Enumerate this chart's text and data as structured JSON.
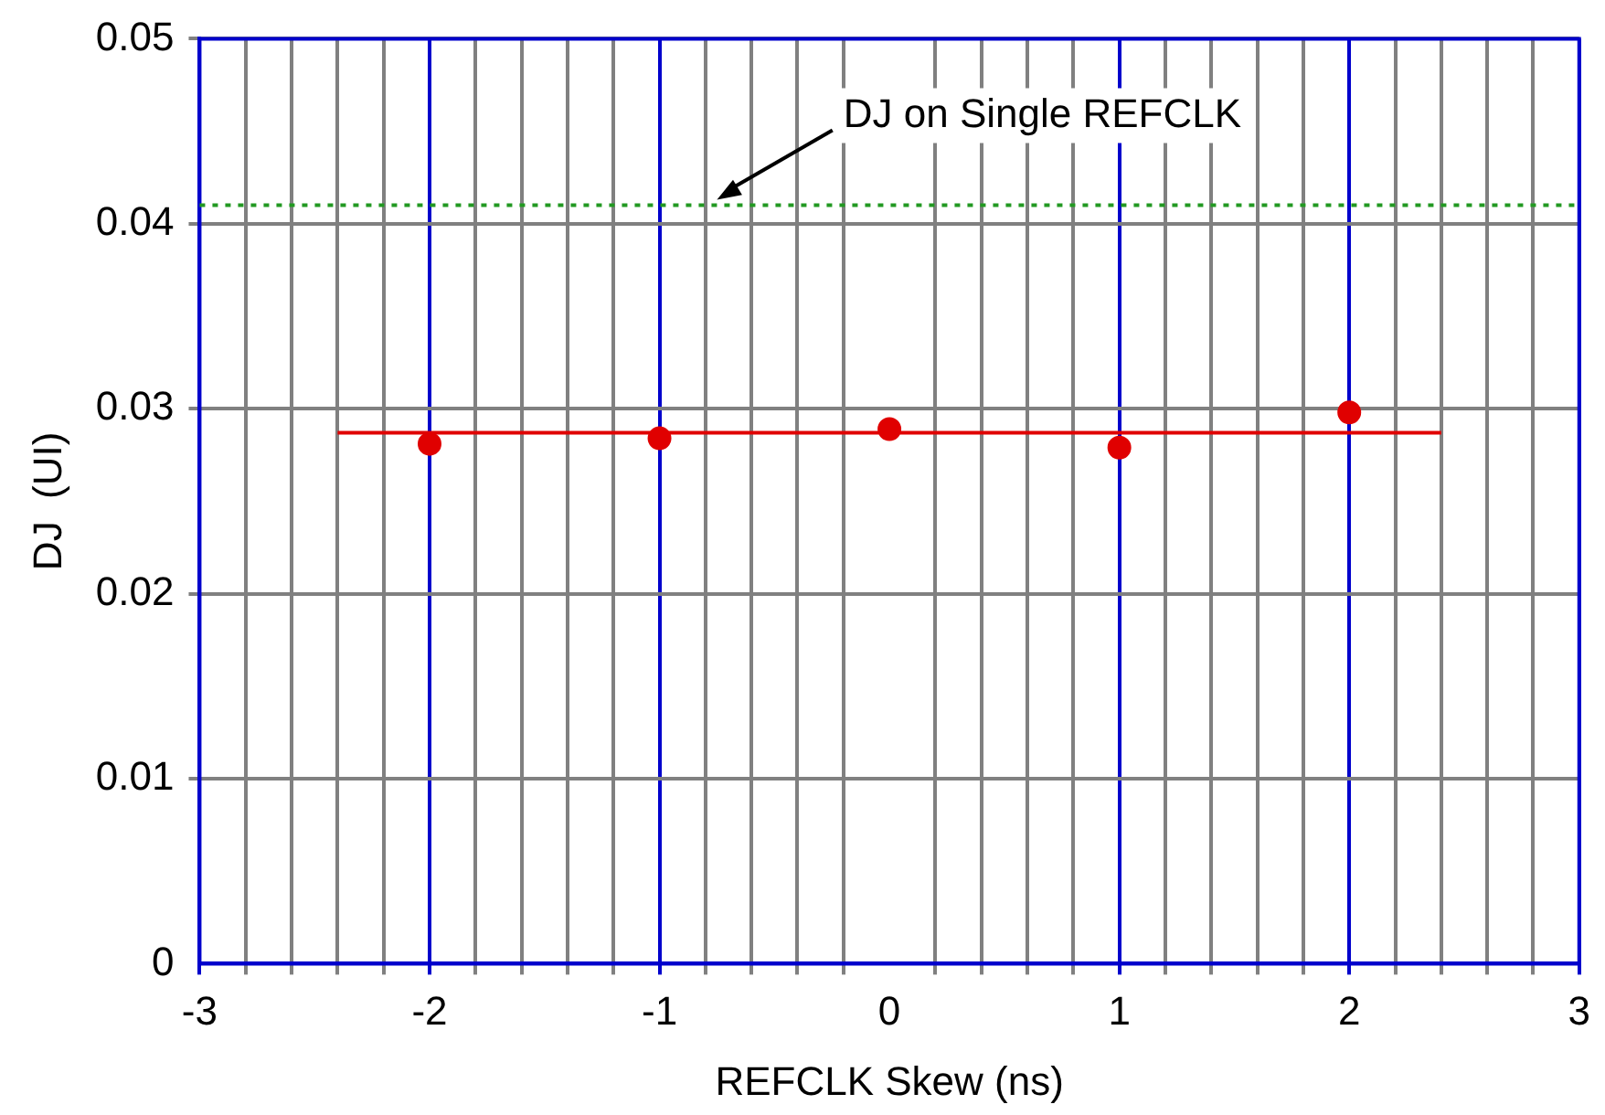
{
  "chart_data": {
    "type": "scatter",
    "xlabel": "REFCLK Skew (ns)",
    "ylabel": "DJ  (UI)",
    "xlim": [
      -3,
      3
    ],
    "ylim": [
      0,
      0.05
    ],
    "xticks": [
      -3,
      {
        "value": -2.8,
        "label": null
      },
      {
        "value": -2.6,
        "label": null
      },
      {
        "value": -2.4,
        "label": null
      },
      {
        "value": -2.2,
        "label": null
      },
      -2,
      {
        "value": -1.8,
        "label": null
      },
      {
        "value": -1.6,
        "label": null
      },
      {
        "value": -1.4,
        "label": null
      },
      {
        "value": -1.2,
        "label": null
      },
      -1,
      {
        "value": -0.8,
        "label": null
      },
      {
        "value": -0.6,
        "label": null
      },
      {
        "value": -0.4,
        "label": null
      },
      {
        "value": -0.2,
        "label": null
      },
      0,
      {
        "value": 0.2,
        "label": null
      },
      {
        "value": 0.4,
        "label": null
      },
      {
        "value": 0.6,
        "label": null
      },
      {
        "value": 0.8,
        "label": null
      },
      1,
      {
        "value": 1.2,
        "label": null
      },
      {
        "value": 1.4,
        "label": null
      },
      {
        "value": 1.6,
        "label": null
      },
      {
        "value": 1.8,
        "label": null
      },
      2,
      {
        "value": 2.2,
        "label": null
      },
      {
        "value": 2.4,
        "label": null
      },
      {
        "value": 2.6,
        "label": null
      },
      {
        "value": 2.8,
        "label": null
      },
      3
    ],
    "yticks": [
      0,
      0.01,
      0.02,
      0.03,
      0.04,
      0.05
    ],
    "grid": true,
    "legend": false,
    "series": [
      {
        "marker": "circle",
        "color": "#e00000",
        "x": [
          -2,
          -1,
          0,
          1,
          2
        ],
        "values": [
          0.0281,
          0.0284,
          0.0289,
          0.0279,
          0.0298
        ]
      },
      {
        "type": "line",
        "marker": "none",
        "color": "#e00000",
        "x": [
          -2.4,
          2.4
        ],
        "values": [
          0.0287,
          0.0287
        ]
      }
    ],
    "ref_lines": [
      {
        "axis": "y",
        "value": 0.041,
        "label": "DJ on Single REFCLK",
        "color": "#229922",
        "line_style": "dotted"
      }
    ]
  }
}
